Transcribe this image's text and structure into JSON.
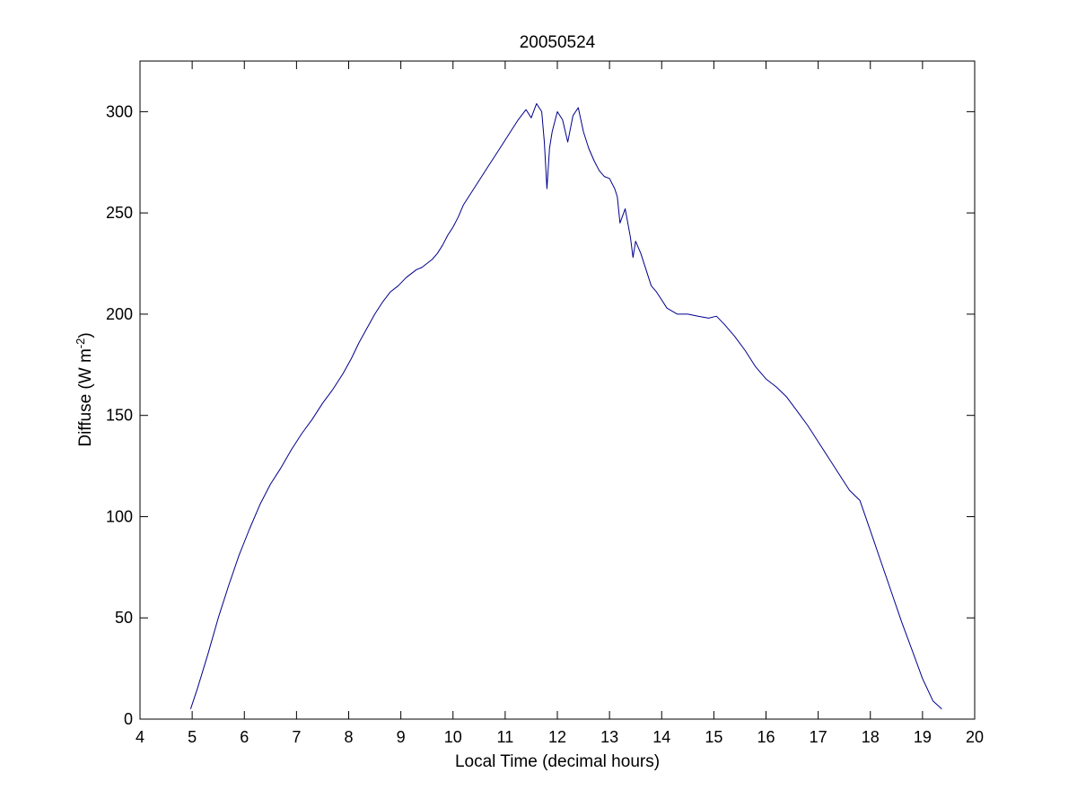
{
  "chart_data": {
    "type": "line",
    "title": "20050524",
    "xlabel": "Local Time (decimal hours)",
    "ylabel": {
      "base": "Diffuse (W m",
      "sup": "-2",
      "tail": ")"
    },
    "xlim": [
      4,
      20
    ],
    "ylim": [
      0,
      325
    ],
    "xticks": [
      4,
      5,
      6,
      7,
      8,
      9,
      10,
      11,
      12,
      13,
      14,
      15,
      16,
      17,
      18,
      19,
      20
    ],
    "yticks": [
      0,
      50,
      100,
      150,
      200,
      250,
      300
    ],
    "grid": false,
    "line_color": "#00008b",
    "series": [
      {
        "x": [
          4.97,
          5.1,
          5.3,
          5.5,
          5.7,
          5.9,
          6.1,
          6.3,
          6.5,
          6.7,
          6.9,
          7.1,
          7.3,
          7.5,
          7.7,
          7.9,
          8.05,
          8.2,
          8.35,
          8.5,
          8.65,
          8.8,
          8.95,
          9.1,
          9.2,
          9.3,
          9.4,
          9.5,
          9.6,
          9.7,
          9.8,
          9.9,
          10.0,
          10.1,
          10.2,
          10.35,
          10.5,
          10.65,
          10.8,
          10.95,
          11.1,
          11.25,
          11.4,
          11.5,
          11.6,
          11.7,
          11.75,
          11.8,
          11.85,
          11.9,
          12.0,
          12.1,
          12.2,
          12.3,
          12.4,
          12.5,
          12.6,
          12.7,
          12.8,
          12.9,
          13.0,
          13.1,
          13.15,
          13.2,
          13.3,
          13.4,
          13.45,
          13.5,
          13.6,
          13.7,
          13.8,
          13.9,
          14.0,
          14.1,
          14.3,
          14.5,
          14.7,
          14.9,
          15.05,
          15.2,
          15.4,
          15.6,
          15.8,
          16.0,
          16.2,
          16.4,
          16.6,
          16.8,
          17.0,
          17.2,
          17.4,
          17.6,
          17.8,
          18.0,
          18.2,
          18.4,
          18.6,
          18.8,
          19.0,
          19.2,
          19.37
        ],
        "y": [
          5,
          15,
          32,
          50,
          66,
          81,
          94,
          106,
          116,
          124,
          133,
          141,
          148,
          156,
          163,
          171,
          178,
          186,
          193,
          200,
          206,
          211,
          214,
          218,
          220,
          222,
          223,
          225,
          227,
          230,
          234,
          239,
          243,
          248,
          254,
          260,
          266,
          272,
          278,
          284,
          290,
          296,
          301,
          297,
          304,
          300,
          285,
          262,
          282,
          290,
          300,
          296,
          285,
          298,
          302,
          290,
          282,
          276,
          271,
          268,
          267,
          262,
          258,
          245,
          252,
          238,
          228,
          236,
          230,
          222,
          214,
          211,
          207,
          203,
          200,
          200,
          199,
          198,
          199,
          195,
          189,
          182,
          174,
          168,
          164,
          159,
          152,
          145,
          137,
          129,
          121,
          113,
          108,
          93,
          78,
          63,
          48,
          34,
          20,
          9,
          5
        ]
      }
    ]
  }
}
